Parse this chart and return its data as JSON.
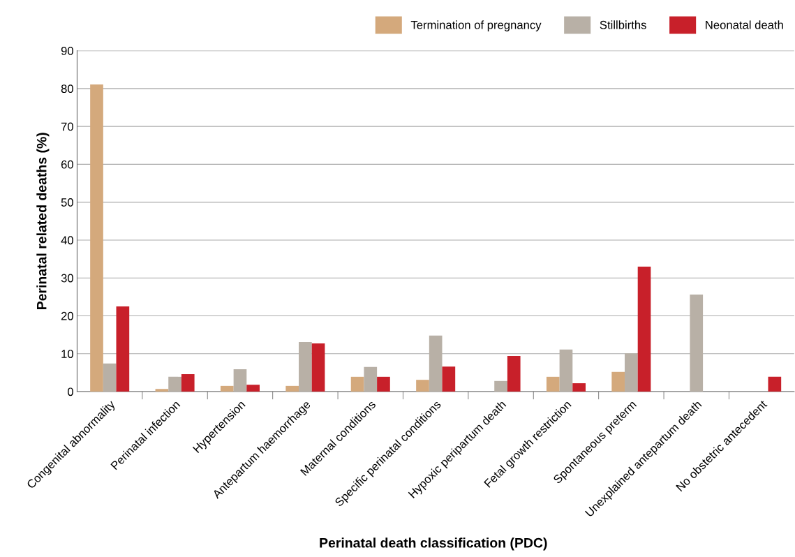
{
  "chart_data": {
    "type": "bar",
    "xlabel": "Perinatal death classification (PDC)",
    "ylabel": "Perinatal related deaths (%)",
    "categories": [
      "Congenital abnormality",
      "Perinatal infection",
      "Hypertension",
      "Antepartum haemorrhage",
      "Maternal conditions",
      "Specific perinatal conditions",
      "Hypoxic peripartum death",
      "Fetal growth restriction",
      "Spontaneous preterm",
      "Unexplained antepartum death",
      "No obstetric antecedent"
    ],
    "series": [
      {
        "name": "Termination of pregnancy",
        "color": "#d4a97c",
        "values": [
          81.1,
          0.7,
          1.5,
          1.5,
          3.9,
          3.1,
          0,
          3.9,
          5.2,
          0,
          0
        ]
      },
      {
        "name": "Stillbirths",
        "color": "#b8b0a6",
        "values": [
          7.4,
          3.9,
          5.9,
          13.1,
          6.5,
          14.8,
          2.8,
          11.1,
          10.1,
          25.6,
          0
        ]
      },
      {
        "name": "Neonatal death",
        "color": "#c8202a",
        "values": [
          22.5,
          4.6,
          1.8,
          12.7,
          3.9,
          6.6,
          9.4,
          2.2,
          33.0,
          0,
          3.9
        ]
      }
    ],
    "ylim": [
      0,
      90
    ],
    "yticks": [
      0,
      10,
      20,
      30,
      40,
      50,
      60,
      70,
      80,
      90
    ],
    "grid": "y",
    "legend": "top right"
  }
}
